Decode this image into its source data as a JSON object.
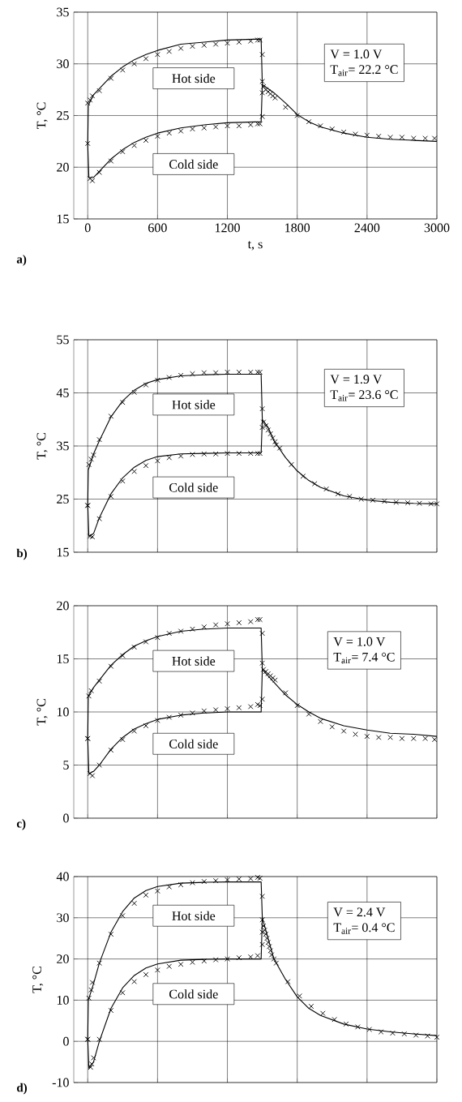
{
  "chart_data": [
    {
      "type": "line",
      "title": "a)",
      "xlabel": "t, s",
      "ylabel": "T, °C",
      "xlim": [
        -120,
        3000
      ],
      "xticks": [
        0,
        600,
        1200,
        1800,
        2400,
        3000
      ],
      "ylim": [
        15,
        35
      ],
      "yticks": [
        15,
        20,
        25,
        30,
        35
      ],
      "grid": true,
      "annotations": [
        "Hot side",
        "Cold side",
        "V = 1.0 V",
        "T$_{air}$= 22.2 °C"
      ],
      "series": [
        {
          "type": "line",
          "color": "#000000",
          "marker": "none",
          "x": [
            0,
            5,
            50,
            100,
            200,
            300,
            400,
            500,
            600,
            800,
            1000,
            1200,
            1490,
            1500,
            1600,
            1700,
            1800,
            1900,
            2000,
            2200,
            2400,
            2600,
            2800,
            3000
          ],
          "values": [
            22.2,
            26.0,
            27.0,
            27.6,
            28.8,
            29.7,
            30.4,
            30.9,
            31.3,
            31.9,
            32.1,
            32.3,
            32.4,
            28.0,
            27.2,
            26.2,
            25.1,
            24.4,
            23.9,
            23.3,
            22.9,
            22.7,
            22.6,
            22.5
          ]
        },
        {
          "type": "line",
          "color": "#000000",
          "marker": "none",
          "x": [
            0,
            10,
            50,
            100,
            200,
            300,
            400,
            500,
            600,
            800,
            1000,
            1200,
            1490,
            1500
          ],
          "values": [
            22.2,
            19.0,
            19.0,
            19.6,
            20.8,
            21.7,
            22.4,
            22.9,
            23.3,
            23.8,
            24.1,
            24.3,
            24.4,
            28.0
          ]
        },
        {
          "type": "scatter",
          "color": "#000000",
          "marker": "cross",
          "x": [
            0,
            20,
            40,
            100,
            200,
            300,
            400,
            500,
            600,
            700,
            800,
            900,
            1000,
            1100,
            1200,
            1300,
            1400,
            1460,
            1480,
            1500,
            1500,
            1510,
            1530,
            1550,
            1570,
            1590,
            1610,
            1700,
            1800,
            1900,
            2000,
            2100,
            2200,
            2300,
            2400,
            2500,
            2600,
            2700,
            2800,
            2900,
            2980
          ],
          "values": [
            26.2,
            26.5,
            26.9,
            27.4,
            28.6,
            29.4,
            30.0,
            30.5,
            30.9,
            31.2,
            31.5,
            31.7,
            31.8,
            31.9,
            32.0,
            32.1,
            32.2,
            32.3,
            32.3,
            30.9,
            28.3,
            27.8,
            27.5,
            27.3,
            27.1,
            26.9,
            26.7,
            25.8,
            25.0,
            24.4,
            24.0,
            23.7,
            23.4,
            23.2,
            23.1,
            23.0,
            22.9,
            22.9,
            22.8,
            22.8,
            22.8
          ]
        },
        {
          "type": "scatter",
          "color": "#000000",
          "marker": "cross",
          "x": [
            0,
            20,
            40,
            100,
            200,
            300,
            400,
            500,
            600,
            700,
            800,
            900,
            1000,
            1100,
            1200,
            1300,
            1400,
            1460,
            1480,
            1500,
            1500
          ],
          "values": [
            22.3,
            18.9,
            18.7,
            19.5,
            20.6,
            21.5,
            22.1,
            22.6,
            23.0,
            23.3,
            23.5,
            23.7,
            23.8,
            23.9,
            24.0,
            24.0,
            24.1,
            24.2,
            24.2,
            24.9,
            27.2
          ]
        }
      ]
    },
    {
      "type": "line",
      "title": "b)",
      "ylabel": "T, °C",
      "xlim": [
        -120,
        3000
      ],
      "xticks": [
        0,
        600,
        1200,
        1800,
        2400,
        3000
      ],
      "ylim": [
        15,
        55
      ],
      "yticks": [
        15,
        25,
        35,
        45,
        55
      ],
      "grid": true,
      "tick_labels": "y",
      "annotations": [
        "Hot side",
        "Cold side",
        "V = 1.9 V",
        "T$_{air}$= 23.6 °C"
      ],
      "series": [
        {
          "type": "line",
          "color": "#000000",
          "marker": "none",
          "x": [
            0,
            5,
            50,
            100,
            200,
            300,
            400,
            500,
            600,
            800,
            1000,
            1200,
            1490,
            1500,
            1550,
            1600,
            1700,
            1800,
            1900,
            2000,
            2200,
            2400,
            2600,
            2800,
            3000
          ],
          "values": [
            24.0,
            30.5,
            33.5,
            36.0,
            40.5,
            43.5,
            45.5,
            46.8,
            47.5,
            48.2,
            48.4,
            48.5,
            48.5,
            40.0,
            38.5,
            36.0,
            32.8,
            30.3,
            28.5,
            27.2,
            25.6,
            24.8,
            24.4,
            24.2,
            24.1
          ]
        },
        {
          "type": "line",
          "color": "#000000",
          "marker": "none",
          "x": [
            0,
            10,
            50,
            100,
            200,
            300,
            400,
            500,
            600,
            800,
            1000,
            1200,
            1490,
            1500
          ],
          "values": [
            24.0,
            18.0,
            18.5,
            21.5,
            26.0,
            29.0,
            31.0,
            32.3,
            33.0,
            33.5,
            33.6,
            33.7,
            33.7,
            40.0
          ]
        },
        {
          "type": "scatter",
          "color": "#000000",
          "marker": "cross",
          "x": [
            0,
            10,
            30,
            50,
            100,
            200,
            300,
            400,
            500,
            600,
            700,
            800,
            900,
            1000,
            1100,
            1200,
            1300,
            1400,
            1460,
            1480,
            1500,
            1500,
            1510,
            1530,
            1550,
            1570,
            1590,
            1610,
            1620,
            1650,
            1750,
            1850,
            1950,
            2050,
            2150,
            2250,
            2350,
            2450,
            2550,
            2650,
            2750,
            2850,
            2950,
            3000
          ],
          "values": [
            23.8,
            31.5,
            32.5,
            33.3,
            36.2,
            40.6,
            43.2,
            45.1,
            46.5,
            47.4,
            47.9,
            48.3,
            48.6,
            48.8,
            48.8,
            48.9,
            48.9,
            48.9,
            48.9,
            48.9,
            42.0,
            38.5,
            39.5,
            38.8,
            38.0,
            37.3,
            36.5,
            35.8,
            35.2,
            34.6,
            31.5,
            29.3,
            27.9,
            26.9,
            26.0,
            25.5,
            25.0,
            24.8,
            24.6,
            24.4,
            24.3,
            24.2,
            24.1,
            24.1
          ]
        },
        {
          "type": "scatter",
          "color": "#000000",
          "marker": "cross",
          "x": [
            0,
            20,
            40,
            100,
            200,
            300,
            400,
            500,
            600,
            700,
            800,
            900,
            1000,
            1100,
            1200,
            1300,
            1400,
            1460,
            1480
          ],
          "values": [
            23.8,
            18.0,
            17.9,
            21.3,
            25.5,
            28.4,
            30.2,
            31.3,
            32.2,
            32.8,
            33.1,
            33.4,
            33.5,
            33.5,
            33.6,
            33.6,
            33.6,
            33.6,
            33.6
          ]
        }
      ]
    },
    {
      "type": "line",
      "title": "c)",
      "ylabel": "T, °C",
      "xlim": [
        -120,
        3000
      ],
      "xticks": [
        0,
        600,
        1200,
        1800,
        2400,
        3000
      ],
      "ylim": [
        0,
        20
      ],
      "yticks": [
        0,
        5,
        10,
        15,
        20
      ],
      "grid": true,
      "tick_labels": "y",
      "annotations": [
        "Hot side",
        "Cold side",
        "V = 1.0 V",
        "T$_{air}$= 7.4 °C"
      ],
      "series": [
        {
          "type": "line",
          "color": "#000000",
          "marker": "none",
          "x": [
            0,
            5,
            50,
            100,
            200,
            300,
            400,
            500,
            600,
            800,
            1000,
            1200,
            1490,
            1500,
            1600,
            1700,
            1800,
            1900,
            2000,
            2200,
            2400,
            2600,
            2800,
            3000
          ],
          "values": [
            7.5,
            11.5,
            12.3,
            13.0,
            14.4,
            15.4,
            16.2,
            16.7,
            17.1,
            17.6,
            17.8,
            17.9,
            17.9,
            14.0,
            12.8,
            11.6,
            10.7,
            10.0,
            9.4,
            8.7,
            8.3,
            8.0,
            7.9,
            7.7
          ]
        },
        {
          "type": "line",
          "color": "#000000",
          "marker": "none",
          "x": [
            0,
            10,
            50,
            100,
            200,
            300,
            400,
            500,
            600,
            800,
            1000,
            1200,
            1490,
            1500
          ],
          "values": [
            7.5,
            4.2,
            4.4,
            5.0,
            6.5,
            7.6,
            8.4,
            8.9,
            9.3,
            9.7,
            9.9,
            10.0,
            10.0,
            14.0
          ]
        },
        {
          "type": "scatter",
          "color": "#000000",
          "marker": "cross",
          "x": [
            0,
            10,
            30,
            100,
            200,
            300,
            400,
            500,
            600,
            700,
            800,
            900,
            1000,
            1100,
            1200,
            1300,
            1400,
            1460,
            1480,
            1500,
            1500,
            1510,
            1530,
            1550,
            1570,
            1590,
            1610,
            1700,
            1800,
            1900,
            2000,
            2100,
            2200,
            2300,
            2400,
            2500,
            2600,
            2700,
            2800,
            2900,
            2980
          ],
          "values": [
            7.5,
            11.5,
            12.0,
            12.9,
            14.3,
            15.3,
            16.1,
            16.6,
            17.0,
            17.4,
            17.6,
            17.8,
            18.0,
            18.2,
            18.3,
            18.4,
            18.5,
            18.7,
            18.7,
            17.4,
            14.6,
            14.0,
            13.8,
            13.6,
            13.4,
            13.2,
            13.0,
            11.8,
            10.6,
            9.8,
            9.1,
            8.6,
            8.2,
            7.9,
            7.7,
            7.6,
            7.6,
            7.5,
            7.5,
            7.5,
            7.4
          ]
        },
        {
          "type": "scatter",
          "color": "#000000",
          "marker": "cross",
          "x": [
            0,
            20,
            40,
            100,
            200,
            300,
            400,
            500,
            600,
            700,
            800,
            900,
            1000,
            1100,
            1200,
            1300,
            1400,
            1460,
            1480,
            1500
          ],
          "values": [
            7.5,
            4.2,
            4.0,
            5.0,
            6.4,
            7.4,
            8.2,
            8.7,
            9.2,
            9.5,
            9.7,
            9.9,
            10.1,
            10.2,
            10.3,
            10.4,
            10.5,
            10.7,
            10.6,
            11.2
          ]
        }
      ]
    },
    {
      "type": "line",
      "title": "d)",
      "ylabel": "T, °C",
      "xlim": [
        -120,
        3000
      ],
      "xticks": [
        0,
        600,
        1200,
        1800,
        2400,
        3000
      ],
      "ylim": [
        -10,
        40
      ],
      "yticks": [
        -10,
        0,
        10,
        20,
        30,
        40
      ],
      "grid": true,
      "tick_labels": "y",
      "annotations": [
        "Hot side",
        "Cold side",
        "V = 2.4 V",
        "T$_{air}$= 0.4 °C"
      ],
      "series": [
        {
          "type": "line",
          "color": "#000000",
          "marker": "none",
          "x": [
            0,
            5,
            50,
            100,
            200,
            300,
            400,
            500,
            600,
            800,
            1000,
            1200,
            1490,
            1500,
            1550,
            1600,
            1700,
            1800,
            1900,
            2000,
            2200,
            2400,
            2600,
            2800,
            3000
          ],
          "values": [
            0.5,
            10.0,
            14.0,
            19.0,
            26.5,
            31.5,
            34.8,
            36.6,
            37.6,
            38.4,
            38.6,
            38.7,
            38.7,
            30.0,
            25.0,
            20.0,
            15.0,
            10.8,
            8.0,
            6.3,
            4.2,
            3.0,
            2.3,
            1.8,
            1.4
          ]
        },
        {
          "type": "line",
          "color": "#000000",
          "marker": "none",
          "x": [
            0,
            10,
            50,
            100,
            200,
            300,
            400,
            500,
            600,
            800,
            1000,
            1200,
            1490,
            1500
          ],
          "values": [
            0.5,
            -6.5,
            -5.0,
            0.0,
            8.0,
            13.0,
            16.0,
            17.8,
            18.8,
            19.7,
            19.9,
            20.0,
            20.0,
            30.0
          ]
        },
        {
          "type": "scatter",
          "color": "#000000",
          "marker": "cross",
          "x": [
            0,
            10,
            30,
            40,
            100,
            200,
            300,
            400,
            500,
            600,
            700,
            800,
            900,
            1000,
            1100,
            1200,
            1300,
            1400,
            1460,
            1480,
            1500,
            1500,
            1510,
            1520,
            1530,
            1540,
            1550,
            1560,
            1570,
            1580,
            1600,
            1620,
            1720,
            1820,
            1920,
            2020,
            2120,
            2220,
            2320,
            2420,
            2520,
            2620,
            2720,
            2820,
            2920,
            3000
          ],
          "values": [
            0.5,
            10.5,
            12.5,
            14.3,
            19.0,
            26.0,
            30.5,
            33.5,
            35.5,
            36.5,
            37.5,
            38.0,
            38.5,
            38.8,
            39.0,
            39.2,
            39.4,
            39.5,
            39.8,
            39.6,
            35.2,
            29.5,
            28.0,
            27.0,
            26.0,
            25.0,
            24.0,
            23.0,
            22.0,
            21.0,
            20.0,
            19.0,
            14.5,
            11.0,
            8.5,
            6.8,
            5.3,
            4.2,
            3.5,
            2.9,
            2.3,
            2.0,
            1.8,
            1.5,
            1.3,
            1.0
          ]
        },
        {
          "type": "scatter",
          "color": "#000000",
          "marker": "cross",
          "x": [
            0,
            25,
            35,
            50,
            100,
            200,
            300,
            400,
            500,
            600,
            700,
            800,
            900,
            1000,
            1100,
            1200,
            1300,
            1400,
            1460,
            1500,
            1500
          ],
          "values": [
            0.5,
            -6.3,
            -5.5,
            -4.0,
            0.5,
            7.5,
            11.8,
            14.5,
            16.2,
            17.3,
            18.2,
            18.7,
            19.2,
            19.5,
            19.8,
            20.0,
            20.3,
            20.5,
            20.8,
            23.5,
            26.5
          ]
        }
      ]
    }
  ]
}
